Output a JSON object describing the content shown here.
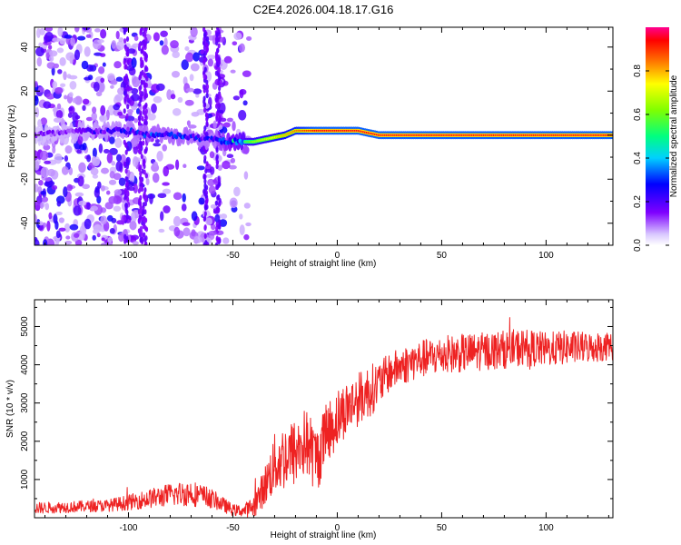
{
  "figure_title": "C2E4.2026.004.18.17.G16",
  "colors": {
    "snr_line": "#ee2222",
    "signal_core": "#cc0000",
    "noise": "#7f00ff",
    "frame": "#000000"
  },
  "chart_data": [
    {
      "type": "heatmap",
      "title": "C2E4.2026.004.18.17.G16",
      "xlabel": "Height of straight line (km)",
      "ylabel": "Frequency (Hz)",
      "xlim": [
        -145,
        132
      ],
      "ylim": [
        -50,
        49
      ],
      "xticks": [
        -100,
        -50,
        0,
        50,
        100
      ],
      "xtick_labels": [
        "-100",
        "-50",
        "0",
        "50",
        "100"
      ],
      "yticks": [
        -40,
        -20,
        0,
        20,
        40
      ],
      "ytick_labels": [
        "-40",
        "-20",
        "0",
        "20",
        "40"
      ],
      "colorbar": {
        "label": "Normalized spectral amplitude",
        "range": [
          0,
          1
        ],
        "ticks": [
          0.0,
          0.2,
          0.4,
          0.6,
          0.8
        ],
        "tick_labels": [
          "0.0",
          "0.2",
          "0.4",
          "0.6",
          "0.8"
        ],
        "colormap": "rainbow"
      },
      "signal_trace": {
        "description": "Dominant frequency track (Hz) vs height (km)",
        "x": [
          -145,
          -120,
          -100,
          -90,
          -80,
          -70,
          -60,
          -50,
          -45,
          -40,
          -35,
          -30,
          -25,
          -20,
          -15,
          -10,
          0,
          10,
          20,
          30,
          50,
          80,
          100,
          132
        ],
        "y": [
          0,
          2,
          2,
          0,
          0,
          -1,
          -2,
          -3,
          -3,
          -3,
          -2,
          -1,
          0,
          2,
          2,
          2,
          2,
          2,
          0,
          0,
          0,
          0,
          0,
          0
        ],
        "amplitude": [
          0.15,
          0.2,
          0.25,
          0.3,
          0.3,
          0.28,
          0.25,
          0.45,
          0.55,
          0.65,
          0.7,
          0.75,
          0.8,
          0.85,
          0.9,
          0.95,
          0.95,
          0.95,
          0.95,
          0.95,
          0.95,
          0.95,
          0.95,
          0.95
        ]
      }
    },
    {
      "type": "line",
      "title": "",
      "xlabel": "Height of straight line (km)",
      "ylabel": "SNR (10 * v/v)",
      "xlim": [
        -145,
        132
      ],
      "ylim": [
        0,
        5700
      ],
      "xticks": [
        -100,
        -50,
        0,
        50,
        100
      ],
      "xtick_labels": [
        "-100",
        "-50",
        "0",
        "50",
        "100"
      ],
      "yticks": [
        1000,
        2000,
        3000,
        4000,
        5000
      ],
      "ytick_labels": [
        "1000",
        "2000",
        "3000",
        "4000",
        "5000"
      ],
      "series": [
        {
          "name": "SNR",
          "x": [
            -145,
            -130,
            -120,
            -110,
            -100,
            -90,
            -80,
            -70,
            -60,
            -50,
            -45,
            -40,
            -35,
            -30,
            -25,
            -20,
            -15,
            -10,
            -5,
            0,
            5,
            10,
            15,
            20,
            25,
            30,
            40,
            50,
            60,
            70,
            80,
            90,
            100,
            110,
            120,
            132
          ],
          "y": [
            250,
            280,
            300,
            320,
            400,
            500,
            600,
            650,
            500,
            200,
            180,
            300,
            800,
            1400,
            1600,
            1700,
            2000,
            1500,
            2200,
            2600,
            2900,
            3100,
            3300,
            3500,
            3800,
            3950,
            4150,
            4250,
            4300,
            4350,
            4400,
            4450,
            4400,
            4450,
            4450,
            4500
          ],
          "noise_amplitude": [
            150,
            150,
            150,
            160,
            200,
            250,
            300,
            350,
            250,
            150,
            150,
            300,
            500,
            800,
            900,
            900,
            900,
            900,
            800,
            800,
            700,
            700,
            700,
            600,
            500,
            500,
            500,
            500,
            500,
            500,
            500,
            500,
            450,
            450,
            400,
            400
          ]
        }
      ]
    }
  ]
}
